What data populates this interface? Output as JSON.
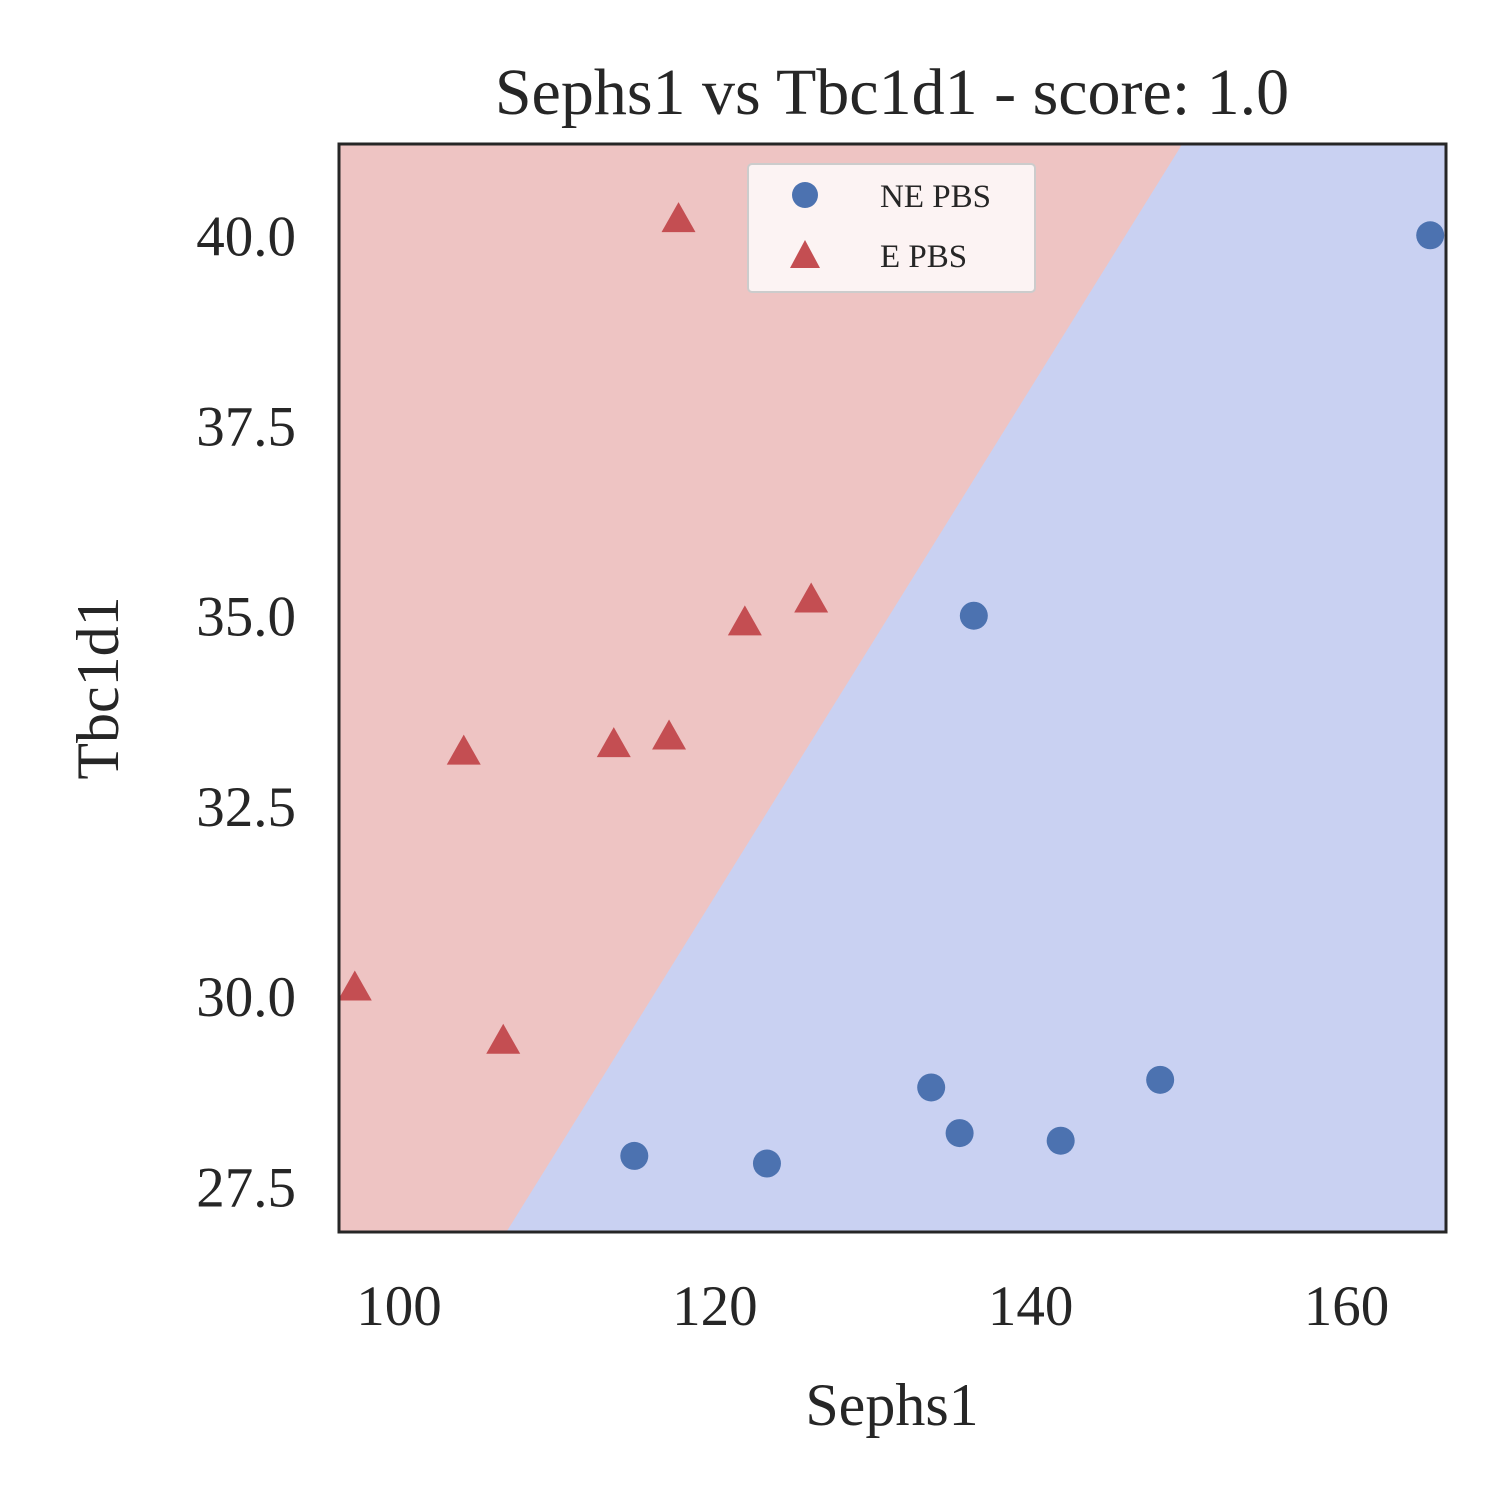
{
  "chart_data": {
    "type": "scatter",
    "title": "Sephs1 vs Tbc1d1 - score: 1.0",
    "xlabel": "Sephs1",
    "ylabel": "Tbc1d1",
    "xlim": [
      96.2,
      166.3
    ],
    "ylim": [
      26.9,
      41.2
    ],
    "x_ticks": [
      100,
      120,
      140,
      160
    ],
    "x_tick_labels": [
      "100",
      "120",
      "140",
      "160"
    ],
    "y_ticks": [
      27.5,
      30.0,
      32.5,
      35.0,
      37.5,
      40.0
    ],
    "y_tick_labels": [
      "27.5",
      "30.0",
      "32.5",
      "35.0",
      "37.5",
      "40.0"
    ],
    "grid": false,
    "legend_position": "top-center",
    "decision_regions": {
      "boundary_line": [
        [
          106.8,
          26.9
        ],
        [
          149.6,
          41.2
        ]
      ],
      "upper_left_class": "E PBS",
      "lower_right_class": "NE PBS",
      "colors": {
        "E PBS": "#eec4c3",
        "NE PBS": "#c9d1f2"
      }
    },
    "series": [
      {
        "name": "NE PBS",
        "marker": "circle",
        "color": "#4c72b0",
        "points": [
          [
            165.3,
            40.0
          ],
          [
            136.4,
            35.0
          ],
          [
            114.9,
            27.9
          ],
          [
            123.3,
            27.8
          ],
          [
            133.7,
            28.8
          ],
          [
            135.5,
            28.2
          ],
          [
            141.9,
            28.1
          ],
          [
            148.2,
            28.9
          ]
        ]
      },
      {
        "name": "E PBS",
        "marker": "triangle",
        "color": "#c44e52",
        "points": [
          [
            97.2,
            30.1
          ],
          [
            104.1,
            33.2
          ],
          [
            106.6,
            29.4
          ],
          [
            113.6,
            33.3
          ],
          [
            117.1,
            33.4
          ],
          [
            117.7,
            40.2
          ],
          [
            121.9,
            34.9
          ],
          [
            126.1,
            35.2
          ]
        ]
      }
    ]
  }
}
